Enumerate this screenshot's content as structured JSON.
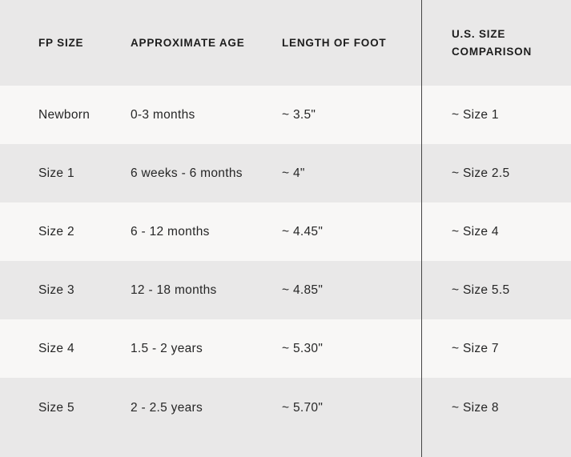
{
  "chart_data": {
    "type": "table",
    "columns": [
      "FP SIZE",
      "APPROXIMATE AGE",
      "LENGTH OF FOOT",
      "U.S. SIZE COMPARISON"
    ],
    "rows": [
      [
        "Newborn",
        "0-3 months",
        "~ 3.5\"",
        "~ Size 1"
      ],
      [
        "Size 1",
        "6 weeks - 6 months",
        "~ 4\"",
        "~ Size 2.5"
      ],
      [
        "Size 2",
        "6 - 12 months",
        "~ 4.45\"",
        "~ Size 4"
      ],
      [
        "Size 3",
        "12 - 18 months",
        "~ 4.85\"",
        "~ Size 5.5"
      ],
      [
        "Size 4",
        "1.5 - 2 years",
        "~ 5.30\"",
        "~ Size 7"
      ],
      [
        "Size 5",
        "2 - 2.5 years",
        "~ 5.70\"",
        "~ Size 8"
      ]
    ],
    "layout": {
      "grid": "off",
      "divider_before_last_column": true,
      "alternating_row_shading": true
    }
  },
  "colors": {
    "row_light": "#f8f7f6",
    "row_shaded": "#e9e8e8",
    "divider": "#454545",
    "header_text": "#1d1d1d",
    "body_text": "#262626"
  }
}
